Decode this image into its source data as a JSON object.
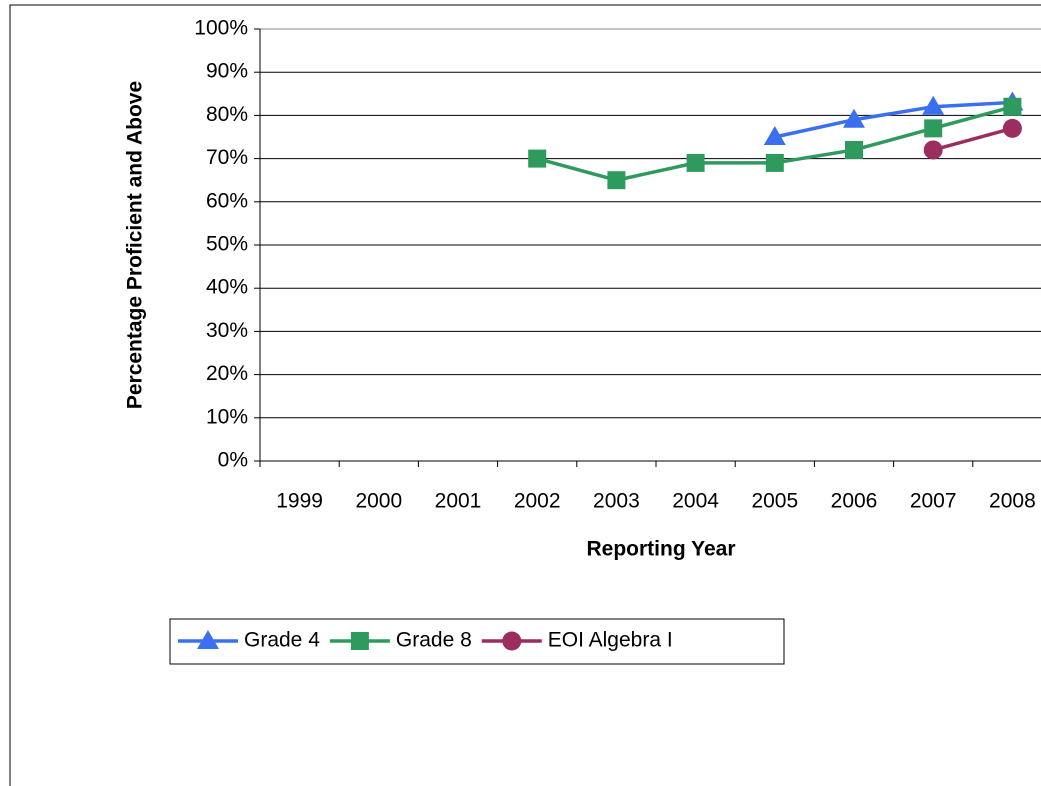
{
  "chart_data": {
    "type": "line",
    "y_label": "Percentage Proficient and Above",
    "x_label": "Reporting Year",
    "categories": [
      "1999",
      "2000",
      "2001",
      "2002",
      "2003",
      "2004",
      "2005",
      "2006",
      "2007",
      "2008"
    ],
    "series": [
      {
        "name": "Grade 4",
        "color": "#3a6ff0",
        "marker": "triangle",
        "values": [
          null,
          null,
          null,
          null,
          null,
          null,
          75,
          79,
          82,
          83
        ]
      },
      {
        "name": "Grade 8",
        "color": "#2e9a5e",
        "marker": "square",
        "values": [
          null,
          null,
          null,
          70,
          65,
          69,
          69,
          72,
          77,
          82
        ]
      },
      {
        "name": "EOI Algebra I",
        "color": "#9b2d5f",
        "marker": "circle",
        "values": [
          null,
          null,
          null,
          null,
          null,
          null,
          null,
          null,
          72,
          77
        ]
      }
    ],
    "ylim": [
      0,
      100
    ],
    "yticks": [
      {
        "value": 0,
        "label": "0%"
      },
      {
        "value": 10,
        "label": "10%"
      },
      {
        "value": 20,
        "label": "20%"
      },
      {
        "value": 30,
        "label": "30%"
      },
      {
        "value": 40,
        "label": "40%"
      },
      {
        "value": 50,
        "label": "50%"
      },
      {
        "value": 60,
        "label": "60%"
      },
      {
        "value": 70,
        "label": "70%"
      },
      {
        "value": 80,
        "label": "80%"
      },
      {
        "value": 90,
        "label": "90%"
      },
      {
        "value": 100,
        "label": "100%"
      }
    ],
    "grid": true,
    "legend": "bottom"
  }
}
